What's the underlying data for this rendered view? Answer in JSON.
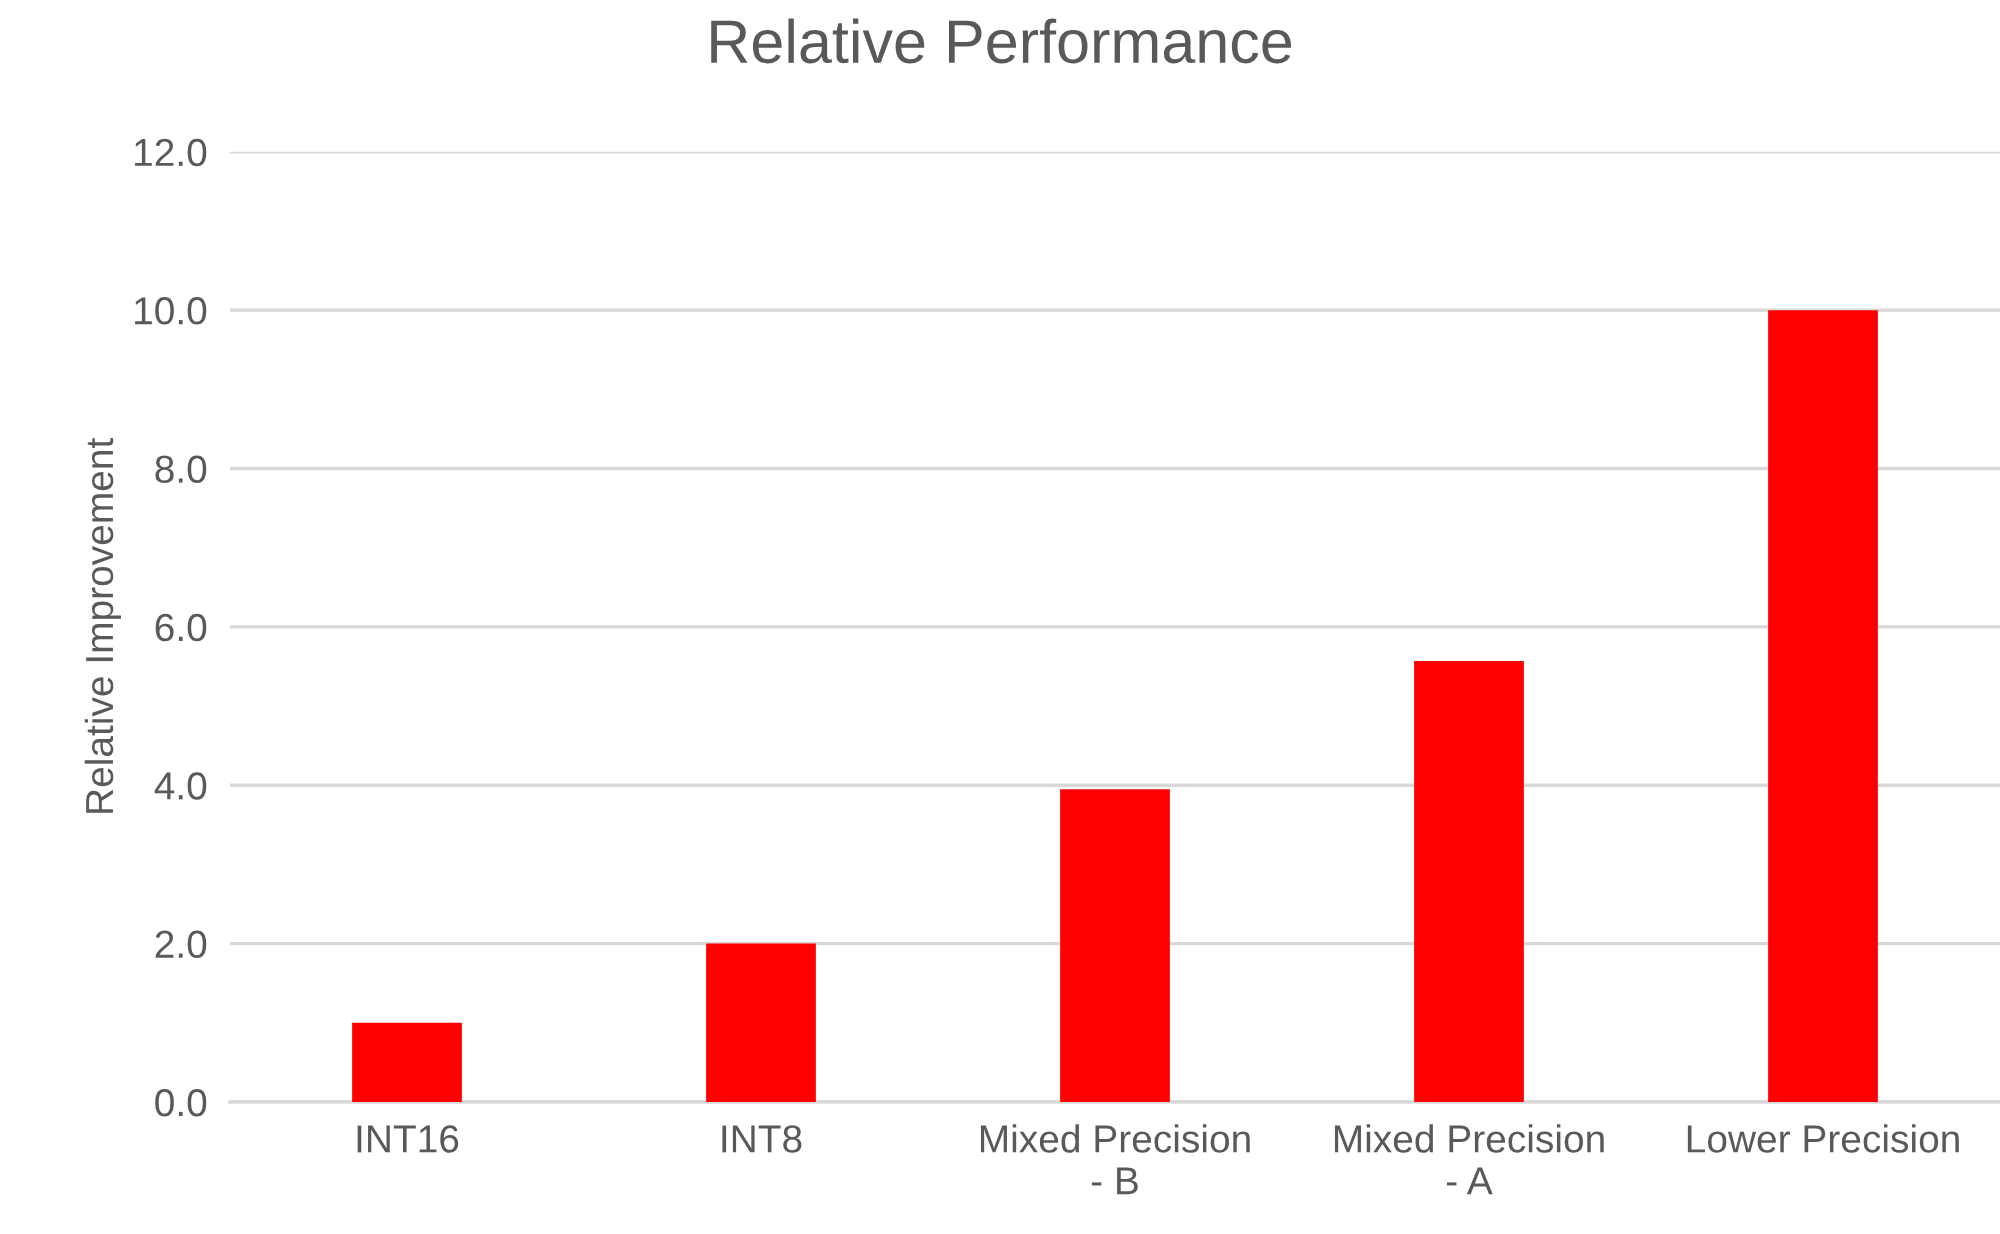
{
  "chart_data": {
    "type": "bar",
    "title": "Relative Performance",
    "ylabel": "Relative Improvement",
    "categories": [
      "INT16",
      "INT8",
      "Mixed Precision\n- B",
      "Mixed Precision\n- A",
      "Lower Precision"
    ],
    "values": [
      1.0,
      2.0,
      3.95,
      5.57,
      10.0
    ],
    "color": "#ff0000",
    "ylim": [
      0,
      12
    ],
    "yticks": [
      {
        "value": 0,
        "label": "0.0"
      },
      {
        "value": 2,
        "label": "2.0"
      },
      {
        "value": 4,
        "label": "4.0"
      },
      {
        "value": 6,
        "label": "6.0"
      },
      {
        "value": 8,
        "label": "8.0"
      },
      {
        "value": 10,
        "label": "10.0"
      },
      {
        "value": 12,
        "label": "12.0"
      }
    ],
    "grid": "y",
    "legend": false
  }
}
